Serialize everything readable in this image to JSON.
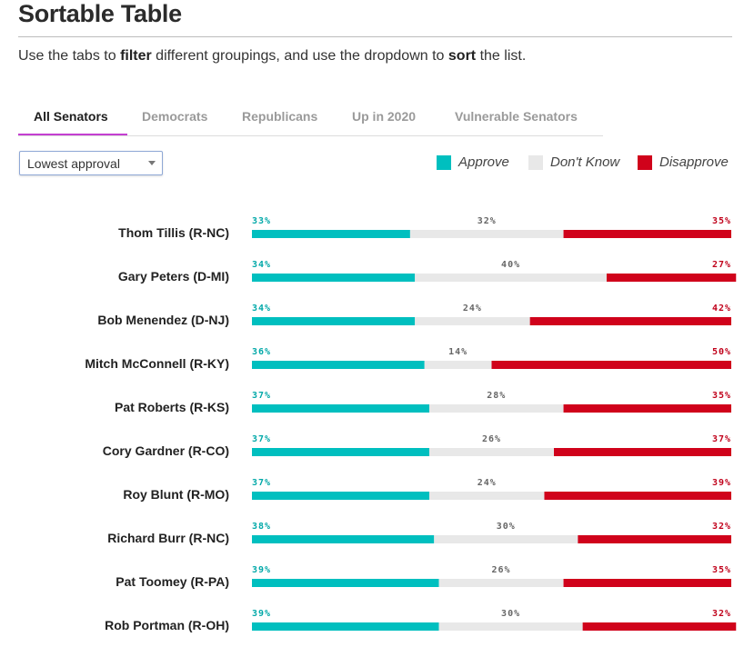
{
  "page": {
    "title": "Sortable Table",
    "intro": {
      "part1": "Use the tabs to ",
      "bold1": "filter",
      "part2": " different groupings, and use the dropdown to ",
      "bold2": "sort",
      "part3": " the list."
    }
  },
  "tabs": [
    {
      "label": "All Senators",
      "active": true
    },
    {
      "label": "Democrats",
      "active": false
    },
    {
      "label": "Republicans",
      "active": false
    },
    {
      "label": "Up in 2020",
      "active": false
    },
    {
      "label": "Vulnerable Senators",
      "active": false
    }
  ],
  "sort_dropdown": {
    "selected": "Lowest approval"
  },
  "legend": [
    {
      "label": "Approve",
      "color": "#00bfbf"
    },
    {
      "label": "Don't Know",
      "color": "#e8e8e8"
    },
    {
      "label": "Disapprove",
      "color": "#d0021b"
    }
  ],
  "chart_data": {
    "type": "bar",
    "stacked": true,
    "orientation": "horizontal",
    "percent_suffix": "%",
    "categories": [
      "Thom Tillis (R-NC)",
      "Gary Peters (D-MI)",
      "Bob Menendez (D-NJ)",
      "Mitch McConnell (R-KY)",
      "Pat Roberts (R-KS)",
      "Cory Gardner (R-CO)",
      "Roy Blunt (R-MO)",
      "Richard Burr (R-NC)",
      "Pat Toomey (R-PA)",
      "Rob Portman (R-OH)"
    ],
    "series": [
      {
        "name": "Approve",
        "color": "#00bfbf",
        "label_color": "#00a8a8",
        "values": [
          33,
          34,
          34,
          36,
          37,
          37,
          37,
          38,
          39,
          39
        ]
      },
      {
        "name": "Don't Know",
        "color": "#e8e8e8",
        "label_color": "#666666",
        "values": [
          32,
          40,
          24,
          14,
          28,
          26,
          24,
          30,
          26,
          30
        ]
      },
      {
        "name": "Disapprove",
        "color": "#d0021b",
        "label_color": "#c0001a",
        "values": [
          35,
          27,
          42,
          50,
          35,
          37,
          39,
          32,
          35,
          32
        ]
      }
    ],
    "xlim": [
      0,
      100
    ]
  }
}
